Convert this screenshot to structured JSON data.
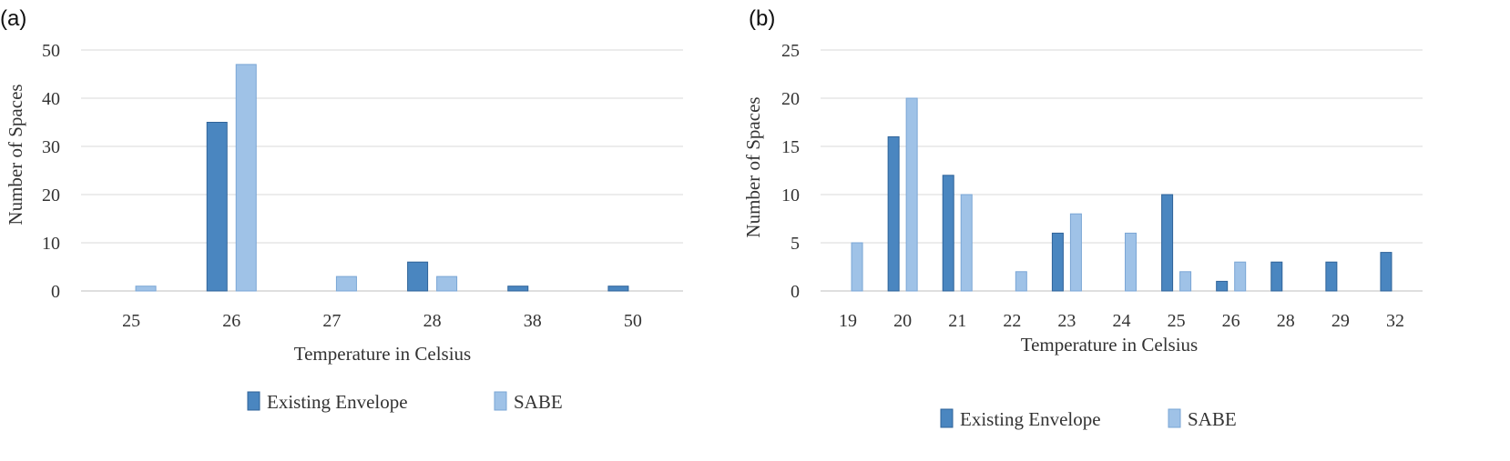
{
  "chart_data": [
    {
      "panel": "(a)",
      "type": "bar",
      "title": "",
      "xlabel": "Temperature in Celsius",
      "ylabel": "Number of Spaces",
      "categories": [
        "25",
        "26",
        "27",
        "28",
        "38",
        "50"
      ],
      "series": [
        {
          "name": "Existing Envelope",
          "color": "#4a86c0",
          "values": [
            0,
            35,
            0,
            6,
            1,
            1
          ]
        },
        {
          "name": "SABE",
          "color": "#9fc2e7",
          "values": [
            1,
            47,
            3,
            3,
            0,
            0
          ]
        }
      ],
      "ylim": [
        0,
        50
      ],
      "yticks": [
        "0",
        "10",
        "20",
        "30",
        "40",
        "50"
      ],
      "grid": true,
      "legend": "bottom"
    },
    {
      "panel": "(b)",
      "type": "bar",
      "title": "",
      "xlabel": "Temperature in Celsius",
      "ylabel": "Number of Spaces",
      "categories": [
        "19",
        "20",
        "21",
        "22",
        "23",
        "24",
        "25",
        "26",
        "28",
        "29",
        "32"
      ],
      "series": [
        {
          "name": "Existing Envelope",
          "color": "#4a86c0",
          "values": [
            0,
            16,
            12,
            0,
            6,
            0,
            10,
            1,
            3,
            3,
            4
          ]
        },
        {
          "name": "SABE",
          "color": "#9fc2e7",
          "values": [
            5,
            20,
            10,
            2,
            8,
            6,
            2,
            3,
            0,
            0,
            0
          ]
        }
      ],
      "ylim": [
        0,
        25
      ],
      "yticks": [
        "0",
        "5",
        "10",
        "15",
        "20",
        "25"
      ],
      "grid": true,
      "legend": "bottom"
    }
  ]
}
